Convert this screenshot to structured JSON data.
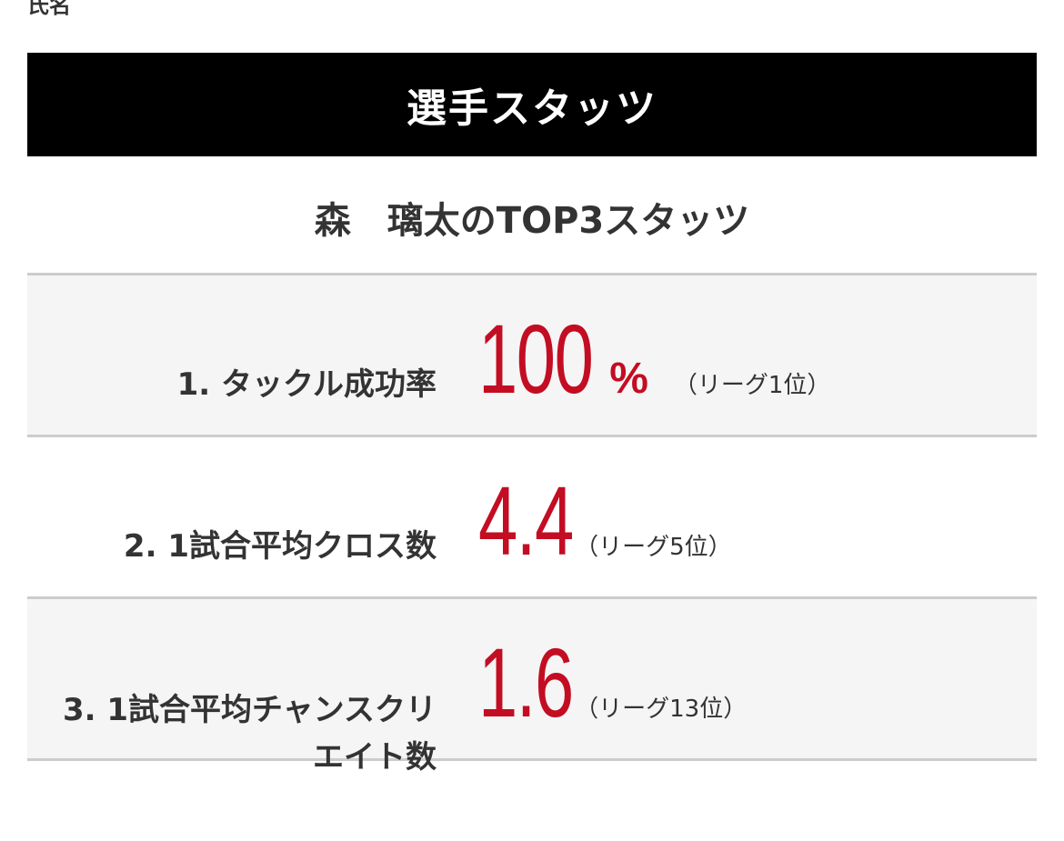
{
  "top_stub": "氏名",
  "section_title": "選手スタッツ",
  "subtitle": "森　璃太のTOP3スタッツ",
  "stats": [
    {
      "label": "1. タックル成功率",
      "value": "100",
      "unit": "%",
      "rank": "（リーグ1位）"
    },
    {
      "label": "2. 1試合平均クロス数",
      "value": "4.4",
      "unit": "",
      "rank": "（リーグ5位）"
    },
    {
      "label": "3. 1試合平均チャンスクリエイト数",
      "value": "1.6",
      "unit": "",
      "rank": "（リーグ13位）"
    }
  ],
  "colors": {
    "header_bg": "#000000",
    "accent": "#c30d23",
    "row_bg": "#f5f5f5",
    "divider": "#cccccc"
  }
}
